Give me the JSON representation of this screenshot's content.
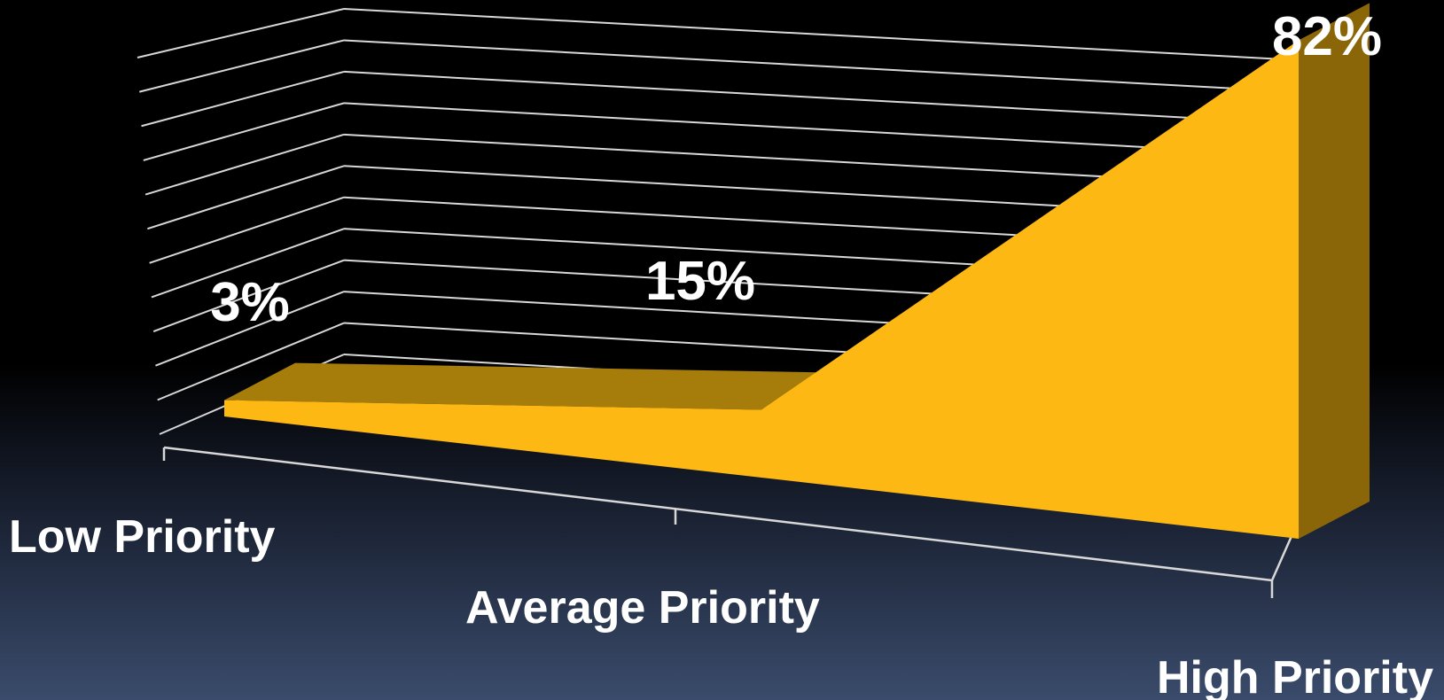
{
  "chart_data": {
    "type": "area",
    "categories": [
      "Low Priority",
      "Average Priority",
      "High Priority"
    ],
    "values": [
      3,
      15,
      82
    ],
    "value_labels": [
      "3%",
      "15%",
      "82%"
    ],
    "unit": "%",
    "ylim": [
      0,
      90
    ],
    "grid": true,
    "three_d": true,
    "colors": {
      "area_front": "#FDB813",
      "area_top": "#A67C0A",
      "area_side": "#8A6608",
      "gridline": "#D8D8D8",
      "text": "#FFFFFF"
    }
  }
}
